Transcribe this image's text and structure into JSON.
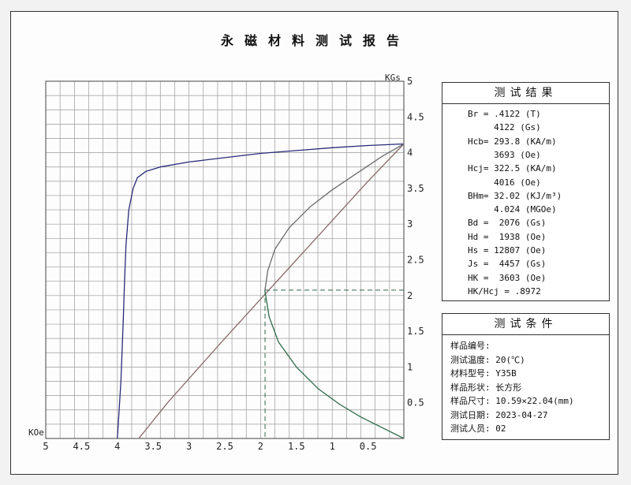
{
  "report": {
    "title": "永磁材料测试报告"
  },
  "chart_data": {
    "type": "line",
    "title": "",
    "xlabel": "KOe",
    "ylabel": "KGs",
    "xlim": [
      5,
      0
    ],
    "ylim": [
      0,
      5
    ],
    "x_ticks": [
      "5",
      "4.5",
      "4",
      "3.5",
      "3",
      "2.5",
      "2",
      "1.5",
      "1",
      "0.5"
    ],
    "y_ticks": [
      "0.5",
      "1",
      "1.5",
      "2",
      "2.5",
      "3",
      "3.5",
      "4",
      "4.5",
      "5"
    ],
    "grid": true,
    "series": [
      {
        "color": "#2a2a7a",
        "points": [
          [
            4.0,
            0
          ],
          [
            3.95,
            0.8
          ],
          [
            3.92,
            1.6
          ],
          [
            3.9,
            2.2
          ],
          [
            3.88,
            2.7
          ],
          [
            3.84,
            3.2
          ],
          [
            3.78,
            3.5
          ],
          [
            3.72,
            3.65
          ],
          [
            3.6,
            3.74
          ],
          [
            3.4,
            3.8
          ],
          [
            3.0,
            3.87
          ],
          [
            2.5,
            3.93
          ],
          [
            2.0,
            3.99
          ],
          [
            1.5,
            4.03
          ],
          [
            1.0,
            4.07
          ],
          [
            0.5,
            4.1
          ],
          [
            0,
            4.122
          ]
        ]
      },
      {
        "color": "#8a6a6a",
        "points": [
          [
            3.7,
            0
          ],
          [
            3.3,
            0.5
          ],
          [
            2.9,
            0.95
          ],
          [
            2.5,
            1.4
          ],
          [
            2.0,
            1.95
          ],
          [
            1.5,
            2.5
          ],
          [
            1.0,
            3.05
          ],
          [
            0.5,
            3.6
          ],
          [
            0,
            4.122
          ]
        ]
      },
      {
        "color": "#6a6a6a",
        "points": [
          [
            1.94,
            2.07
          ],
          [
            1.9,
            2.35
          ],
          [
            1.8,
            2.65
          ],
          [
            1.6,
            2.95
          ],
          [
            1.3,
            3.25
          ],
          [
            1.0,
            3.48
          ],
          [
            0.6,
            3.75
          ],
          [
            0.3,
            3.95
          ],
          [
            0,
            4.122
          ]
        ]
      },
      {
        "color": "#2f6a4a",
        "points": [
          [
            1.94,
            2.07
          ],
          [
            1.88,
            1.7
          ],
          [
            1.75,
            1.35
          ],
          [
            1.5,
            1.0
          ],
          [
            1.2,
            0.7
          ],
          [
            0.9,
            0.48
          ],
          [
            0.6,
            0.3
          ],
          [
            0.3,
            0.15
          ],
          [
            0,
            0
          ]
        ]
      }
    ],
    "bd_hd_point": {
      "hd": 1.938,
      "bd": 2.076
    }
  },
  "results": {
    "title": "测试结果",
    "rows": [
      "Br = .4122 (T)",
      "     4122 (Gs)",
      "Hcb= 293.8 (KA/m)",
      "     3693 (Oe)",
      "Hcj= 322.5 (KA/m)",
      "     4016 (Oe)",
      "BHm= 32.02 (KJ/m³)",
      "     4.024 (MGOe)",
      "Bd =  2076 (Gs)",
      "Hd =  1938 (Oe)",
      "Hs = 12807 (Oe)",
      "Js =  4457 (Gs)",
      "HK =  3603 (Oe)",
      "HK/Hcj = .8972"
    ]
  },
  "conditions": {
    "title": "测试条件",
    "rows": [
      "样品编号:",
      "测试温度: 20(℃)",
      "材料型号: Y35B",
      "样品形状: 长方形",
      "样品尺寸: 10.59×22.04(mm)",
      "测试日期: 2023-04-27",
      "测试人员: 02"
    ]
  }
}
